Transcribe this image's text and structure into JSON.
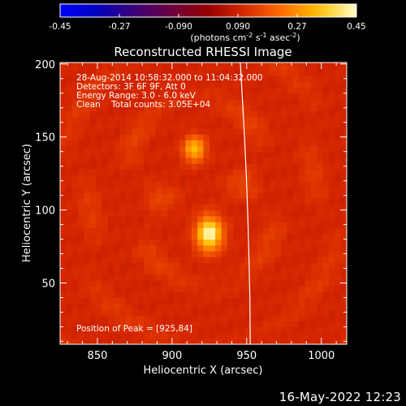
{
  "chart_data": {
    "type": "heatmap",
    "title": "Reconstructed RHESSI Image",
    "xlabel": "Heliocentric X (arcsec)",
    "ylabel": "Heliocentric Y (arcsec)",
    "xlim": [
      825,
      1017
    ],
    "ylim": [
      8,
      201
    ],
    "x_ticks": [
      850,
      900,
      950,
      1000
    ],
    "y_ticks": [
      50,
      100,
      150,
      200
    ],
    "colorbar": {
      "min": -0.45,
      "max": 0.45,
      "ticks": [
        "-0.45",
        "-0.27",
        "-0.090",
        "0.090",
        "0.27",
        "0.45"
      ],
      "tick_values": [
        -0.45,
        -0.27,
        -0.09,
        0.09,
        0.27,
        0.45
      ],
      "units_prefix": "(photons cm",
      "units_exp1": "-2",
      "units_mid": " s",
      "units_exp2": "-1",
      "units_mid2": " asec",
      "units_exp3": "-2",
      "units_suffix": ")"
    },
    "annotations": [
      "28-Aug-2014 10:58:32.000 to 11:04:32.000",
      "Detectors: 3F 6F 9F, Att 0",
      "Energy Range: 3.0 - 6.0 keV",
      "Clean    Total counts: 3.05E+04"
    ],
    "peak_label": "Position of Peak = [925,84]",
    "sources": [
      {
        "x": 925,
        "y": 84,
        "peak": 0.45,
        "sigma_x": 6,
        "sigma_y": 8
      },
      {
        "x": 915,
        "y": 142,
        "peak": 0.34,
        "sigma_x": 5,
        "sigma_y": 6
      }
    ],
    "background_level": 0.1,
    "limb": [
      [
        945.7,
        201
      ],
      [
        946.9,
        180
      ],
      [
        948.0,
        160
      ],
      [
        949.0,
        140
      ],
      [
        949.9,
        120
      ],
      [
        950.6,
        100
      ],
      [
        951.2,
        80
      ],
      [
        951.7,
        60
      ],
      [
        952.1,
        40
      ],
      [
        952.3,
        20
      ],
      [
        952.4,
        8
      ]
    ],
    "grid": false
  },
  "footer": {
    "timestamp": "16-May-2022 12:23"
  }
}
